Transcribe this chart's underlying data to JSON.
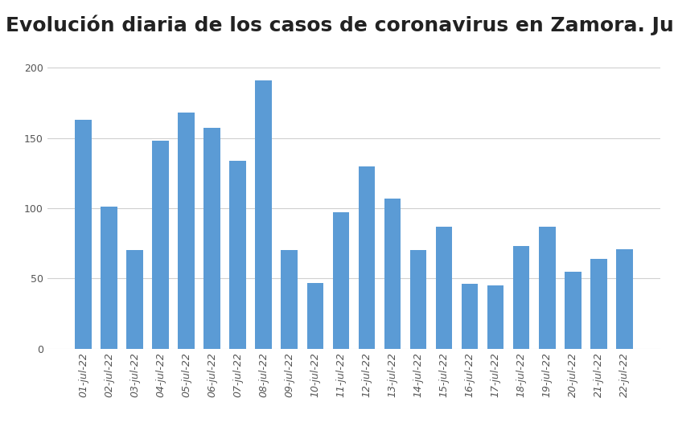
{
  "title": "Evolución diaria de los casos de coronavirus en Zamora. Julio",
  "categories": [
    "01-jul-22",
    "02-jul-22",
    "03-jul-22",
    "04-jul-22",
    "05-jul-22",
    "06-jul-22",
    "07-jul-22",
    "08-jul-22",
    "09-jul-22",
    "10-jul-22",
    "11-jul-22",
    "12-jul-22",
    "13-jul-22",
    "14-jul-22",
    "15-jul-22",
    "16-jul-22",
    "17-jul-22",
    "18-jul-22",
    "19-jul-22",
    "20-jul-22",
    "21-jul-22",
    "22-jul-22"
  ],
  "values": [
    163,
    101,
    70,
    148,
    168,
    157,
    134,
    191,
    70,
    47,
    97,
    130,
    107,
    70,
    87,
    46,
    45,
    73,
    87,
    55,
    64,
    71
  ],
  "bar_color": "#5B9BD5",
  "ylim": [
    0,
    210
  ],
  "yticks": [
    0,
    50,
    100,
    150,
    200
  ],
  "title_fontsize": 18,
  "tick_fontsize": 9,
  "background_color": "#ffffff",
  "grid_color": "#d0d0d0"
}
